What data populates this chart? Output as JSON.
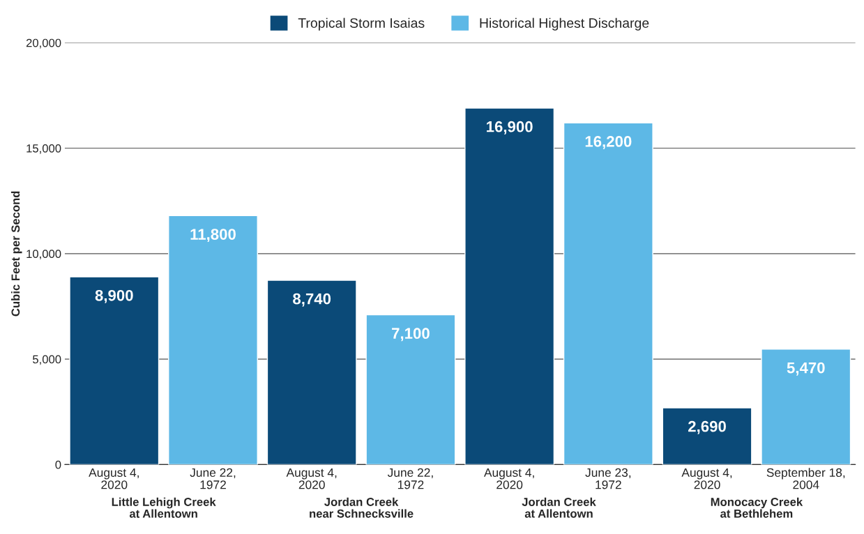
{
  "chart_data": {
    "type": "bar",
    "ylabel": "Cubic Feet per Second",
    "categories": [
      "August 4,\n2020",
      "June 22,\n1972",
      "August 4,\n2020",
      "June 22,\n1972",
      "August 4,\n2020",
      "June 23,\n1972",
      "August 4,\n2020",
      "September 18,\n2004"
    ],
    "series": [
      {
        "name": "Tropical Storm Isaias",
        "color": "#0b4a78",
        "values": [
          8900,
          null,
          8740,
          null,
          16900,
          null,
          2690,
          null
        ],
        "value_labels": [
          "8,900",
          null,
          "8,740",
          null,
          "16,900",
          null,
          "2,690",
          null
        ]
      },
      {
        "name": "Historical Highest Discharge",
        "color": "#5db8e6",
        "values": [
          null,
          11800,
          null,
          7100,
          null,
          16200,
          null,
          5470
        ],
        "value_labels": [
          null,
          "11,800",
          null,
          "7,100",
          null,
          "16,200",
          null,
          "5,470"
        ]
      }
    ],
    "ylim": [
      0,
      20000
    ],
    "yticks": [
      0,
      {
        "value": 5000,
        "label": "5,000"
      },
      {
        "value": 10000,
        "label": "10,000"
      },
      {
        "value": 15000,
        "label": "15,000"
      },
      {
        "value": 20000,
        "label": "20,000"
      }
    ],
    "grid": "y",
    "legend": "top",
    "annotations": [
      "Little Lehigh Creek\nat Allentown",
      "Jordan Creek\nnear Schnecksville",
      "Jordan Creek\nat Allentown",
      "Monocacy Creek\nat Bethlehem"
    ]
  }
}
